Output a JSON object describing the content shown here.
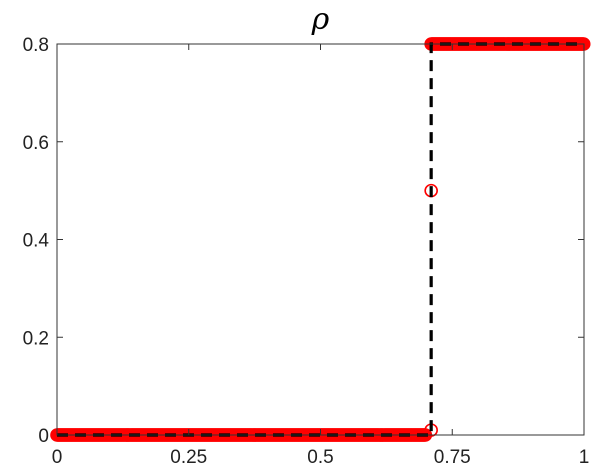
{
  "chart_data": {
    "type": "scatter",
    "title": "ρ",
    "xlabel": "",
    "ylabel": "",
    "xlim": [
      0,
      1
    ],
    "ylim": [
      0,
      0.8
    ],
    "grid": false,
    "x_ticks": [
      "0",
      "0.25",
      "0.5",
      "0.75",
      "1"
    ],
    "x_tick_values": [
      0,
      0.25,
      0.5,
      0.75,
      1
    ],
    "y_ticks": [
      "0",
      "0.2",
      "0.4",
      "0.6",
      "0.8"
    ],
    "y_tick_values": [
      0,
      0.2,
      0.4,
      0.6,
      0.8
    ],
    "series": [
      {
        "marker": "circle-open",
        "color": "#ff0000",
        "points_low": {
          "x_from": 0.0,
          "x_to": 0.7,
          "y": 0
        },
        "points_high": {
          "x_from": 0.71,
          "x_to": 1.0,
          "y": 0.8
        },
        "transition_points": [
          {
            "x": 0.71,
            "y": 0.5
          },
          {
            "x": 0.71,
            "y": 0.01
          }
        ]
      }
    ],
    "reference_line": {
      "style": "dashed",
      "color": "#000000",
      "points": [
        [
          0,
          0
        ],
        [
          0.71,
          0
        ],
        [
          0.71,
          0.8
        ],
        [
          1,
          0.8
        ]
      ]
    }
  }
}
